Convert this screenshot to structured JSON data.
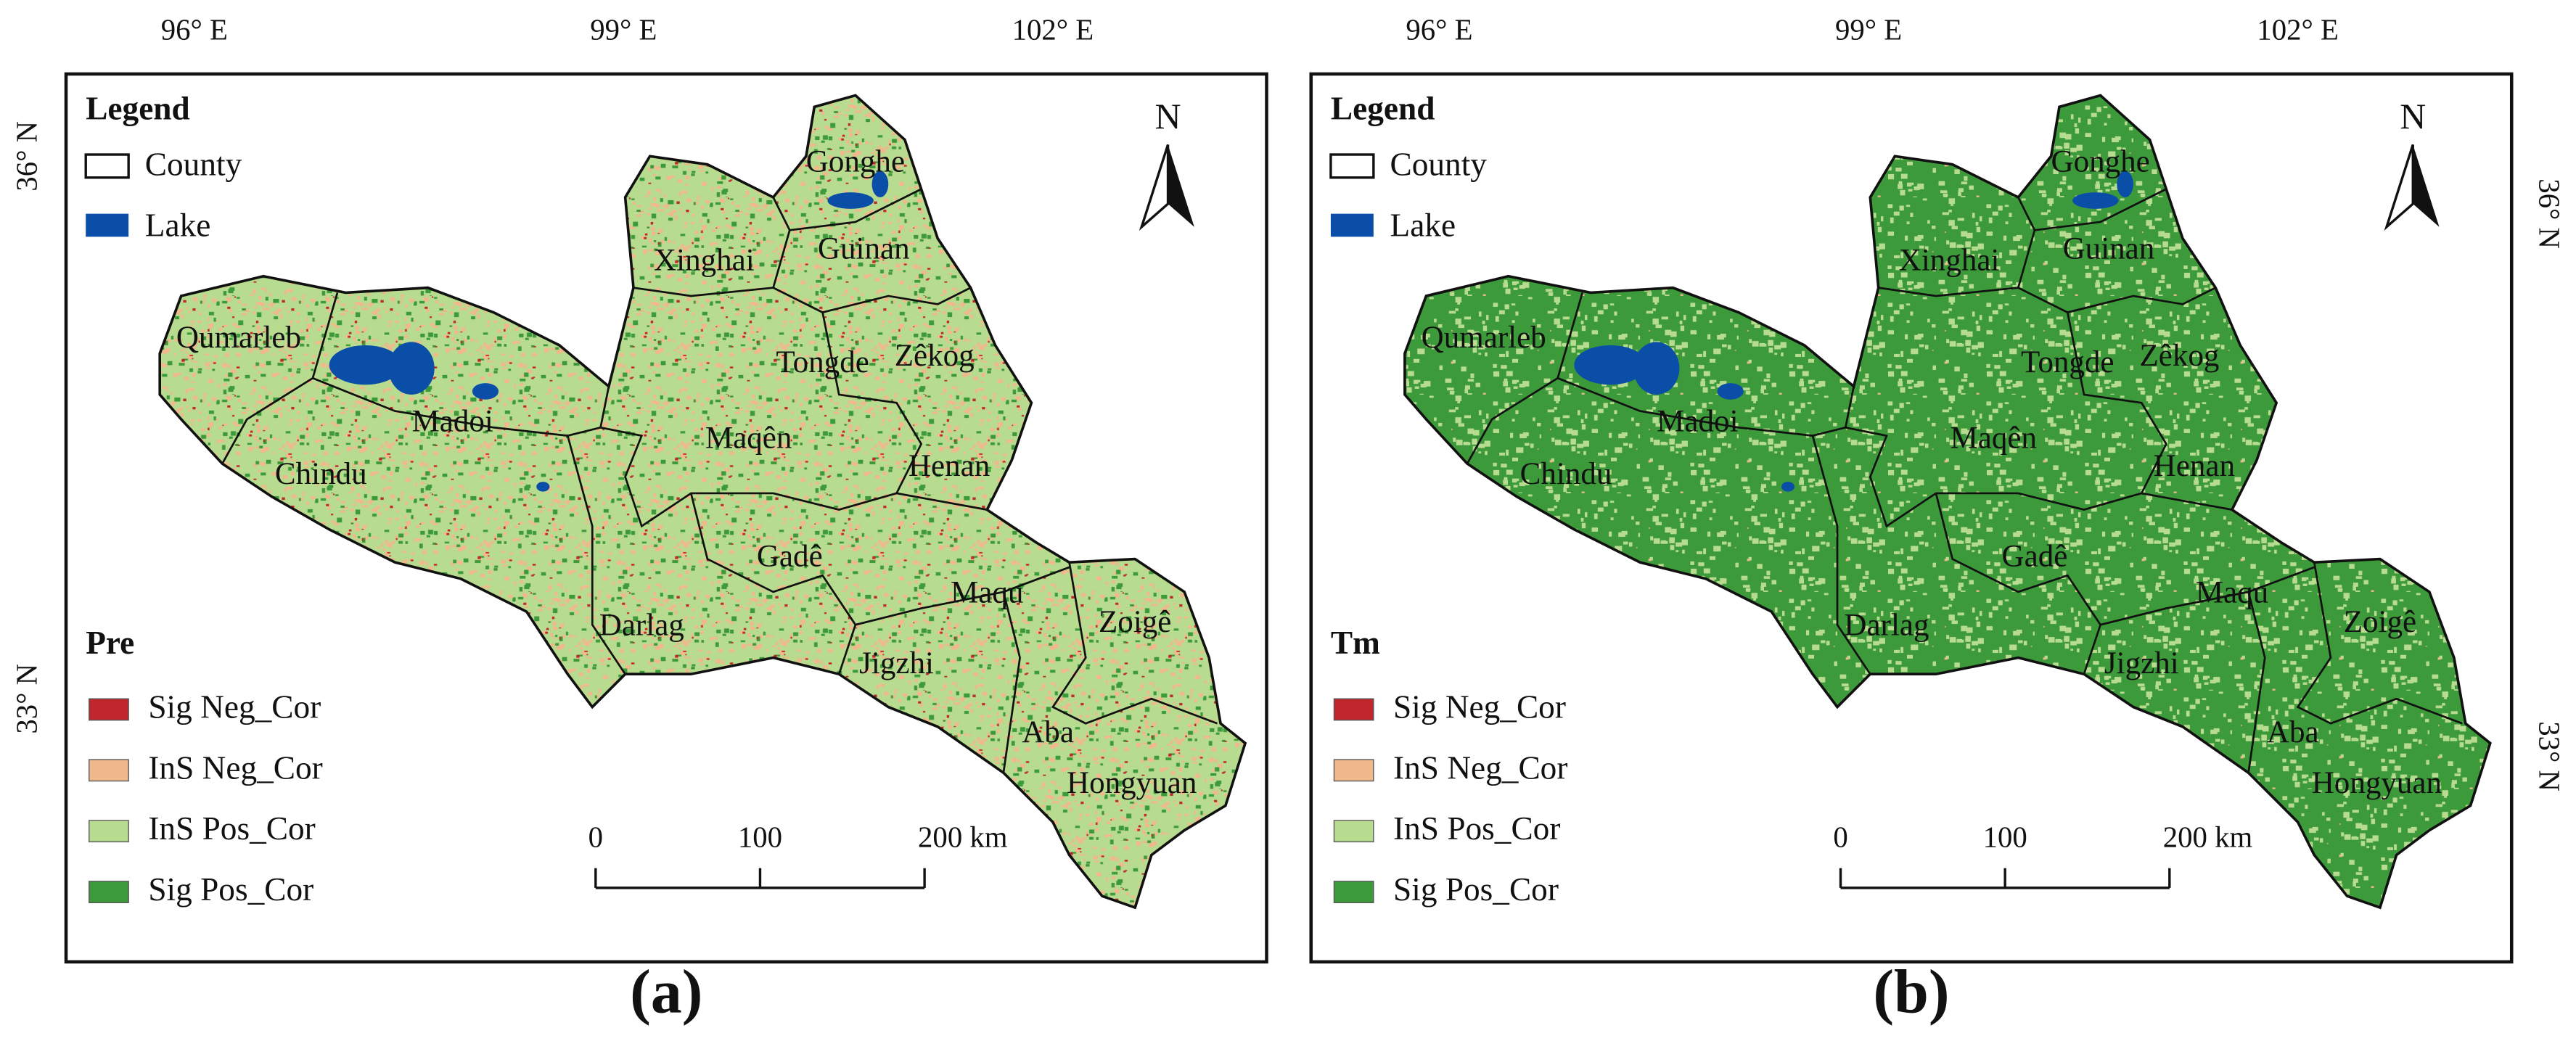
{
  "longitude_ticks": [
    {
      "value": 96,
      "label": "96° E"
    },
    {
      "value": 99,
      "label": "99° E"
    },
    {
      "value": 102,
      "label": "102° E"
    }
  ],
  "latitude_ticks": [
    {
      "value": 36,
      "label": "36° N"
    },
    {
      "value": 33,
      "label": "33° N"
    }
  ],
  "legend": {
    "title": "Legend",
    "county": "County",
    "lake": "Lake",
    "classes": [
      {
        "name": "Sig Neg_Cor",
        "color": "#c0272d"
      },
      {
        "name": "InS Neg_Cor",
        "color": "#f0b98b"
      },
      {
        "name": "InS Pos_Cor",
        "color": "#b8dc8f"
      },
      {
        "name": "Sig Pos_Cor",
        "color": "#3d9a3a"
      }
    ]
  },
  "north": "N",
  "scale_bar": [
    0,
    100,
    {
      "value": 200,
      "label": "200 km"
    }
  ],
  "counties": [
    "Gonghe",
    "Guinan",
    "Xinghai",
    "Qumarleb",
    "Tongde",
    "Zêkog",
    "Madoi",
    "Maqên",
    "Chindu",
    "Henan",
    "Gadê",
    "Maqu",
    "Darlag",
    "Zoigê",
    "Jigzhi",
    "Aba",
    "Hongyuan"
  ],
  "panels": [
    {
      "label": "(a)",
      "variable": "Pre"
    },
    {
      "label": "(b)",
      "variable": "Tm"
    }
  ]
}
